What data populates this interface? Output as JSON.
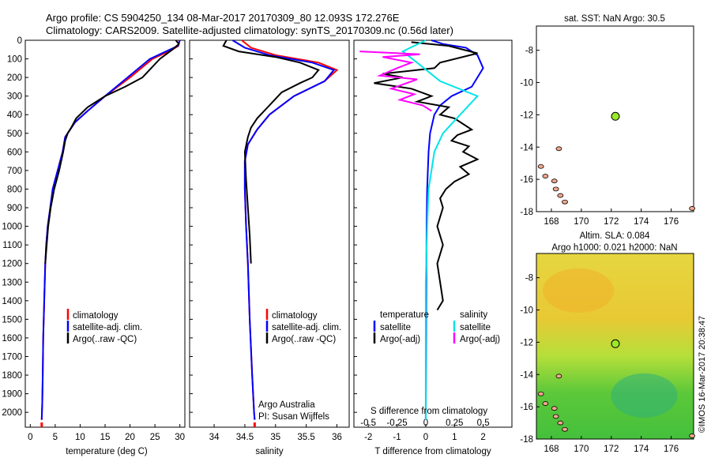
{
  "header": {
    "line1": "Argo profile: CS 5904250_134 08-Mar-2017 20170309_80 12.093S 172.276E",
    "line2": "Climatology: CARS2009. Satellite-adjusted climatology: synTS_20170309.nc (0.56d later)"
  },
  "colors": {
    "climatology": "#ff0000",
    "satellite": "#0000ff",
    "argo": "#000000",
    "sal_satellite": "#00e5e5",
    "sal_argo": "#ff00ff",
    "marker": "#9be82a",
    "land": "#f2a78c"
  },
  "chart_data": [
    {
      "id": "temperature",
      "type": "line",
      "xlabel": "temperature (deg C)",
      "ylabel": "",
      "xlim": [
        -1,
        31
      ],
      "ylim": [
        2080,
        0
      ],
      "xticks": [
        0,
        5,
        10,
        15,
        20,
        25,
        30
      ],
      "yticks": [
        0,
        100,
        200,
        300,
        400,
        500,
        600,
        700,
        800,
        900,
        1000,
        1100,
        1200,
        1300,
        1400,
        1500,
        1600,
        1700,
        1800,
        1900,
        2000
      ],
      "legend": [
        "climatology",
        "satellite-adj. clim.",
        "Argo(..raw -QC)"
      ],
      "series": [
        {
          "name": "climatology",
          "color": "#ff0000",
          "x": [
            29.9,
            29.7,
            28.5,
            24.5,
            20.0,
            15.0,
            11.5,
            9.0,
            8.0,
            7.0,
            6.5,
            5.5,
            4.5,
            4.0,
            3.5,
            3.2,
            3.0,
            2.8,
            2.6,
            2.5,
            2.4,
            2.35,
            2.3
          ],
          "y": [
            0,
            30,
            50,
            100,
            200,
            300,
            380,
            440,
            480,
            520,
            600,
            700,
            800,
            900,
            1000,
            1100,
            1200,
            1400,
            1600,
            1800,
            1950,
            2000,
            2040
          ]
        },
        {
          "name": "satellite-adj. clim.",
          "color": "#0000ff",
          "x": [
            30.0,
            29.6,
            28.0,
            24.0,
            19.5,
            15.0,
            11.5,
            9.0,
            8.0,
            7.0,
            6.5,
            5.5,
            4.5,
            4.0,
            3.5,
            3.2,
            3.0,
            2.8,
            2.6,
            2.5,
            2.4,
            2.35,
            2.3
          ],
          "y": [
            0,
            30,
            50,
            100,
            200,
            300,
            380,
            440,
            480,
            520,
            600,
            700,
            800,
            900,
            1000,
            1100,
            1200,
            1400,
            1600,
            1800,
            1950,
            2000,
            2040
          ]
        },
        {
          "name": "Argo(..raw -QC)",
          "color": "#000000",
          "x": [
            29.2,
            29.8,
            28.5,
            26.0,
            22.5,
            19.0,
            15.0,
            11.5,
            9.2,
            8.2,
            7.5,
            7.0,
            6.6,
            5.8,
            4.8,
            4.1,
            3.6,
            3.3,
            3.0
          ],
          "y": [
            0,
            20,
            50,
            100,
            200,
            250,
            300,
            360,
            420,
            470,
            500,
            540,
            600,
            700,
            800,
            900,
            1000,
            1100,
            1200
          ]
        }
      ]
    },
    {
      "id": "salinity",
      "type": "line",
      "xlabel": "salinity",
      "ylabel": "",
      "xlim": [
        33.6,
        36.2
      ],
      "ylim": [
        2080,
        0
      ],
      "xticks": [
        34,
        34.5,
        35,
        35.5,
        36
      ],
      "legend": [
        "climatology",
        "satellite-adj. clim.",
        "Argo(..raw -QC)"
      ],
      "annotation": [
        "Argo Australia",
        "PI: Susan Wijffels"
      ],
      "series": [
        {
          "name": "climatology",
          "color": "#ff0000",
          "x": [
            34.45,
            34.6,
            35.0,
            35.7,
            36.0,
            35.8,
            35.3,
            34.9,
            34.7,
            34.55,
            34.5,
            34.5,
            34.52,
            34.55,
            34.58,
            34.62,
            34.65,
            34.66
          ],
          "y": [
            0,
            40,
            80,
            120,
            160,
            220,
            300,
            400,
            480,
            560,
            650,
            800,
            1000,
            1200,
            1500,
            1800,
            2000,
            2040
          ]
        },
        {
          "name": "satellite-adj. clim.",
          "color": "#0000ff",
          "x": [
            34.3,
            34.5,
            34.9,
            35.6,
            35.95,
            35.8,
            35.3,
            34.9,
            34.7,
            34.55,
            34.5,
            34.5,
            34.52,
            34.55,
            34.58,
            34.62,
            34.65,
            34.66
          ],
          "y": [
            0,
            40,
            80,
            120,
            160,
            220,
            300,
            400,
            480,
            560,
            650,
            800,
            1000,
            1200,
            1500,
            1800,
            2000,
            2040
          ]
        },
        {
          "name": "Argo(..raw -QC)",
          "color": "#000000",
          "x": [
            34.2,
            34.15,
            34.4,
            35.0,
            35.4,
            35.7,
            35.6,
            35.4,
            35.1,
            34.9,
            34.7,
            34.6,
            34.55,
            34.5,
            34.52,
            34.55,
            34.58,
            34.6
          ],
          "y": [
            0,
            30,
            60,
            90,
            120,
            160,
            200,
            230,
            280,
            350,
            420,
            470,
            520,
            600,
            750,
            900,
            1050,
            1200
          ]
        }
      ]
    },
    {
      "id": "differences",
      "type": "line",
      "xlabel": "T difference from climatology",
      "xlabel_top": "S difference from climatology",
      "xlim": [
        -2.5,
        3.0
      ],
      "ylim": [
        2080,
        0
      ],
      "xticks": [
        -2,
        -1,
        0,
        1,
        2
      ],
      "xticks_top_labels": [
        "-0.5",
        "-0.25",
        "0",
        "0.25",
        "0.5"
      ],
      "xticks_top_pos": [
        -2,
        -1,
        0,
        1,
        2
      ],
      "legend_temperature_title": "temperature",
      "legend_salinity_title": "salinity",
      "legend": [
        "satellite",
        "Argo(-adj)",
        "satellite",
        "Argo(-adj)"
      ],
      "series": [
        {
          "name": "satellite",
          "color": "#0000ff",
          "x": [
            0.2,
            0.6,
            1.4,
            1.8,
            2.0,
            1.6,
            0.9,
            0.5,
            0.3,
            0.15,
            0.1,
            0.05,
            0.03,
            0.02,
            0.01,
            0.0
          ],
          "y": [
            0,
            20,
            40,
            80,
            150,
            250,
            300,
            350,
            400,
            500,
            600,
            800,
            1000,
            1300,
            1700,
            2040
          ]
        },
        {
          "name": "Argo(-adj)",
          "color": "#000000",
          "x": [
            -0.5,
            0.8,
            1.8,
            0.5,
            0.3,
            -1.5,
            -0.8,
            -1.8,
            -0.5,
            0.2,
            -0.3,
            0.8,
            0.5,
            1.0,
            1.3,
            1.6,
            1.1,
            0.9,
            1.5,
            1.3,
            1.8,
            1.2,
            1.5,
            1.0,
            0.7,
            0.5,
            0.6,
            0.5,
            0.4,
            0.5,
            0.6,
            0.4,
            0.5,
            0.6,
            0.4
          ],
          "y": [
            10,
            30,
            70,
            120,
            150,
            180,
            200,
            230,
            260,
            300,
            330,
            360,
            400,
            420,
            450,
            480,
            510,
            540,
            570,
            600,
            640,
            680,
            720,
            760,
            800,
            850,
            900,
            950,
            1000,
            1050,
            1100,
            1200,
            1300,
            1400,
            1450
          ]
        },
        {
          "name": "satellite",
          "color": "#00e5e5",
          "x": [
            0.0,
            -0.8,
            -0.3,
            0.5,
            1.8,
            1.2,
            0.6,
            0.3,
            0.2,
            0.1,
            0.05,
            0.0,
            0.0,
            0.0
          ],
          "y": [
            0,
            60,
            120,
            220,
            300,
            400,
            500,
            600,
            700,
            800,
            1000,
            1300,
            1700,
            2040
          ]
        },
        {
          "name": "Argo(-adj)",
          "color": "#ff00ff",
          "x": [
            -2.3,
            -0.2,
            -1.5,
            -0.5,
            -1.0,
            -1.6,
            -0.3,
            -1.2,
            -0.4,
            -0.9,
            -0.1,
            0.2
          ],
          "y": [
            60,
            75,
            90,
            120,
            150,
            190,
            210,
            260,
            290,
            320,
            350,
            380
          ]
        }
      ]
    },
    {
      "id": "sst_map",
      "type": "scatter",
      "title": "sat. SST: NaN Argo: 30.5",
      "xlim": [
        167,
        177.5
      ],
      "ylim": [
        -18,
        -6.5
      ],
      "xticks": [
        168,
        170,
        172,
        174,
        176
      ],
      "yticks": [
        -8,
        -10,
        -12,
        -14,
        -16,
        -18
      ],
      "point": {
        "x": 172.276,
        "y": -12.093
      }
    },
    {
      "id": "sla_map",
      "type": "heatmap",
      "title_line1": "Altim. SLA: 0.084",
      "title_line2": "Argo h1000: 0.021 h2000: NaN",
      "xlim": [
        167,
        177.5
      ],
      "ylim": [
        -18,
        -6.5
      ],
      "xticks": [
        168,
        170,
        172,
        174,
        176
      ],
      "yticks": [
        -8,
        -10,
        -12,
        -14,
        -16,
        -18
      ],
      "point": {
        "x": 172.276,
        "y": -12.093
      }
    }
  ],
  "footer": {
    "side_label": "©IMOS 16-Mar-2017 20:38:47"
  }
}
